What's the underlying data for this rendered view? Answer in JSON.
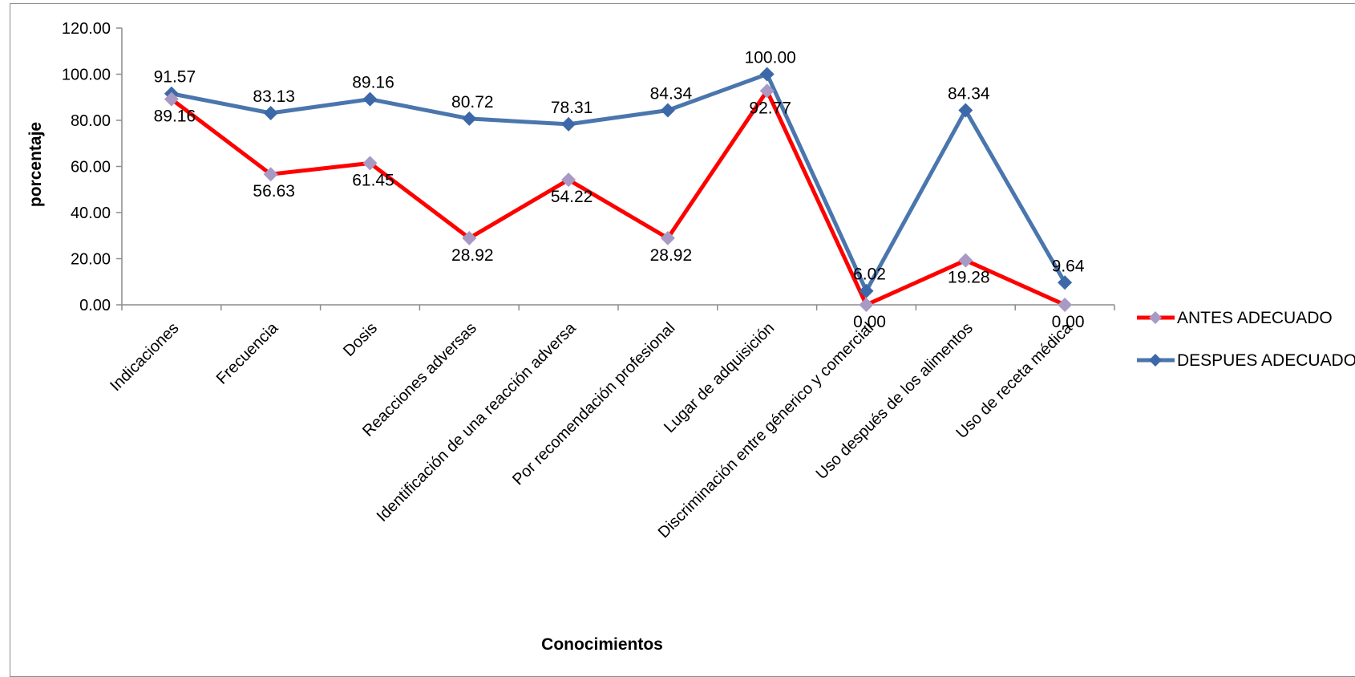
{
  "chart_data": {
    "type": "line",
    "title": "",
    "xlabel": "Conocimientos",
    "ylabel": "porcentaje",
    "ylim": [
      0,
      120
    ],
    "y_ticks": [
      "0.00",
      "20.00",
      "40.00",
      "60.00",
      "80.00",
      "100.00",
      "120.00"
    ],
    "grid": false,
    "legend_position": "right",
    "categories": [
      "Indicaciones",
      "Frecuencia",
      "Dosis",
      "Reacciones adversas",
      "Identificación de una reacción adversa",
      "Por recomendación profesional",
      "Lugar de adquisición",
      "Discriminación entre génerico y comercial",
      "Uso después de los alimentos",
      "Uso de receta médica"
    ],
    "series": [
      {
        "name": "ANTES ADECUADO",
        "color": "#ff0000",
        "marker_color": "#a89ac4",
        "values": [
          89.16,
          56.63,
          61.45,
          28.92,
          54.22,
          28.92,
          92.77,
          0.0,
          19.28,
          0.0
        ],
        "labels": [
          "89.16",
          "56.63",
          "61.45",
          "28.92",
          "54.22",
          "28.92",
          "92.77",
          "0.00",
          "19.28",
          "0.00"
        ]
      },
      {
        "name": "DESPUES ADECUADO",
        "color": "#4a76ad",
        "marker_color": "#3d68a8",
        "values": [
          91.57,
          83.13,
          89.16,
          80.72,
          78.31,
          84.34,
          100.0,
          6.02,
          84.34,
          9.64
        ],
        "labels": [
          "91.57",
          "83.13",
          "89.16",
          "80.72",
          "78.31",
          "84.34",
          "100.00",
          "6.02",
          "84.34",
          "9.64"
        ]
      }
    ]
  }
}
